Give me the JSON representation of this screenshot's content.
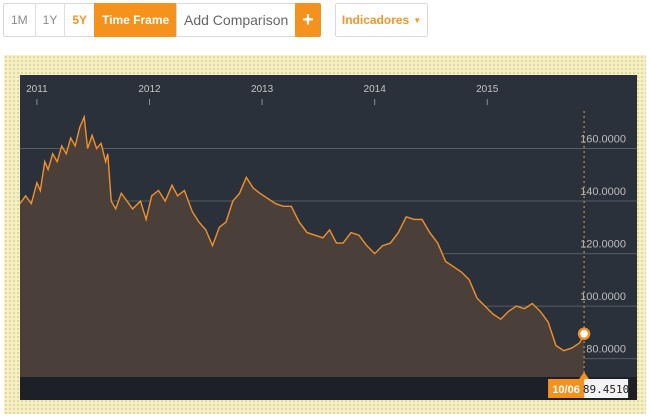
{
  "toolbar": {
    "ranges": [
      "1M",
      "1Y",
      "5Y"
    ],
    "active_range": "5Y",
    "time_frame_label": "Time Frame",
    "compare_placeholder": "Add Comparison",
    "plus_symbol": "+",
    "indicators_label": "Indicadores",
    "indicators_caret": "▼"
  },
  "colors": {
    "accent": "#f5921e",
    "chart_bg": "#2b313b",
    "line": "#f0912b",
    "grid": "#555c66"
  },
  "chart": {
    "year_ticks": [
      "2011",
      "2012",
      "2013",
      "2014",
      "2015"
    ],
    "y_ticks": [
      "160.0000",
      "140.0000",
      "120.0000",
      "100.0000",
      "80.0000"
    ],
    "badge_date": "10/06",
    "badge_value": "89.4510",
    "hover_icon": "data-point-marker-icon"
  },
  "chart_data": {
    "type": "area",
    "ylim": [
      73,
      188
    ],
    "y_gridlines": [
      80,
      100,
      120,
      140,
      160
    ],
    "x_ticks": [
      2011,
      2012,
      2013,
      2014,
      2015
    ],
    "x_range": [
      2010.85,
      2016.33
    ],
    "points": [
      [
        2010.85,
        139
      ],
      [
        2010.9,
        142
      ],
      [
        2010.95,
        139
      ],
      [
        2011.0,
        147
      ],
      [
        2011.03,
        144
      ],
      [
        2011.07,
        155
      ],
      [
        2011.1,
        152
      ],
      [
        2011.14,
        158
      ],
      [
        2011.18,
        155
      ],
      [
        2011.22,
        161
      ],
      [
        2011.26,
        158
      ],
      [
        2011.3,
        164
      ],
      [
        2011.34,
        161
      ],
      [
        2011.38,
        168
      ],
      [
        2011.42,
        172
      ],
      [
        2011.45,
        160
      ],
      [
        2011.49,
        165
      ],
      [
        2011.53,
        160
      ],
      [
        2011.57,
        162
      ],
      [
        2011.61,
        155
      ],
      [
        2011.63,
        158
      ],
      [
        2011.66,
        140
      ],
      [
        2011.7,
        137
      ],
      [
        2011.75,
        143
      ],
      [
        2011.8,
        140
      ],
      [
        2011.85,
        137
      ],
      [
        2011.92,
        140
      ],
      [
        2011.97,
        133
      ],
      [
        2012.02,
        142
      ],
      [
        2012.08,
        144
      ],
      [
        2012.14,
        140
      ],
      [
        2012.2,
        146
      ],
      [
        2012.25,
        142
      ],
      [
        2012.31,
        144
      ],
      [
        2012.38,
        136
      ],
      [
        2012.44,
        132
      ],
      [
        2012.5,
        129
      ],
      [
        2012.56,
        123
      ],
      [
        2012.62,
        130
      ],
      [
        2012.68,
        132
      ],
      [
        2012.74,
        140
      ],
      [
        2012.8,
        143
      ],
      [
        2012.86,
        149
      ],
      [
        2012.92,
        145
      ],
      [
        2012.98,
        143
      ],
      [
        2013.05,
        141
      ],
      [
        2013.12,
        139
      ],
      [
        2013.19,
        138
      ],
      [
        2013.26,
        138
      ],
      [
        2013.33,
        132
      ],
      [
        2013.4,
        128
      ],
      [
        2013.47,
        127
      ],
      [
        2013.54,
        126
      ],
      [
        2013.6,
        129
      ],
      [
        2013.66,
        124
      ],
      [
        2013.72,
        124
      ],
      [
        2013.79,
        128
      ],
      [
        2013.86,
        127
      ],
      [
        2013.93,
        123
      ],
      [
        2014.0,
        120
      ],
      [
        2014.07,
        123
      ],
      [
        2014.14,
        124
      ],
      [
        2014.21,
        128
      ],
      [
        2014.28,
        134
      ],
      [
        2014.35,
        133
      ],
      [
        2014.42,
        133
      ],
      [
        2014.49,
        128
      ],
      [
        2014.56,
        124
      ],
      [
        2014.63,
        117
      ],
      [
        2014.7,
        115
      ],
      [
        2014.77,
        113
      ],
      [
        2014.84,
        110
      ],
      [
        2014.91,
        103
      ],
      [
        2014.98,
        100
      ],
      [
        2015.05,
        97
      ],
      [
        2015.12,
        95
      ],
      [
        2015.19,
        98
      ],
      [
        2015.26,
        100
      ],
      [
        2015.33,
        99
      ],
      [
        2015.4,
        101
      ],
      [
        2015.47,
        98
      ],
      [
        2015.54,
        94
      ],
      [
        2015.61,
        85
      ],
      [
        2015.68,
        83
      ],
      [
        2015.75,
        84
      ],
      [
        2015.82,
        86
      ],
      [
        2015.86,
        89.451
      ]
    ],
    "highlight": {
      "x": 2015.86,
      "y": 89.451,
      "label_date": "10/06",
      "label_value": "89.4510"
    }
  }
}
